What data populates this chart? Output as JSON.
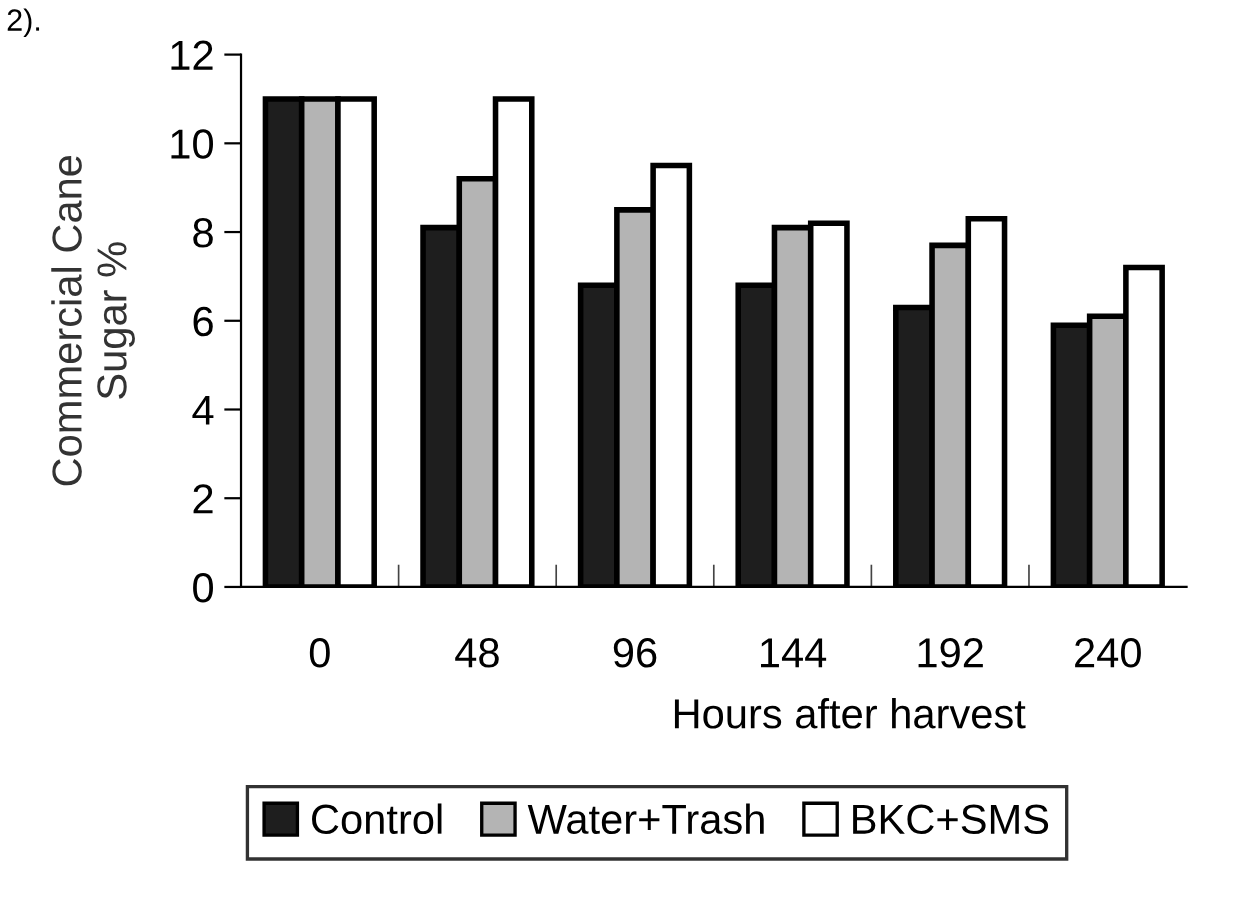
{
  "chart_data": {
    "type": "bar",
    "xlabel": "Hours after harvest",
    "ylabel": "Commercial Cane\nSugar %",
    "annotations": [
      "2)."
    ],
    "categories": [
      "0",
      "48",
      "96",
      "144",
      "192",
      "240"
    ],
    "series": [
      {
        "name": "Control",
        "color": "#1e1e1e",
        "values": [
          11.0,
          8.1,
          6.8,
          6.8,
          6.3,
          5.9
        ]
      },
      {
        "name": "Water+Trash",
        "color": "#b4b4b4",
        "values": [
          11.0,
          9.2,
          8.5,
          8.1,
          7.7,
          6.1
        ]
      },
      {
        "name": "BKC+SMS",
        "color": "#ffffff",
        "values": [
          11.0,
          11.0,
          9.5,
          8.2,
          8.3,
          7.2
        ]
      }
    ],
    "ylim": [
      0,
      12
    ],
    "yticks": [
      0,
      2,
      4,
      6,
      8,
      10,
      12
    ],
    "grid": false,
    "legend": "bottom"
  }
}
